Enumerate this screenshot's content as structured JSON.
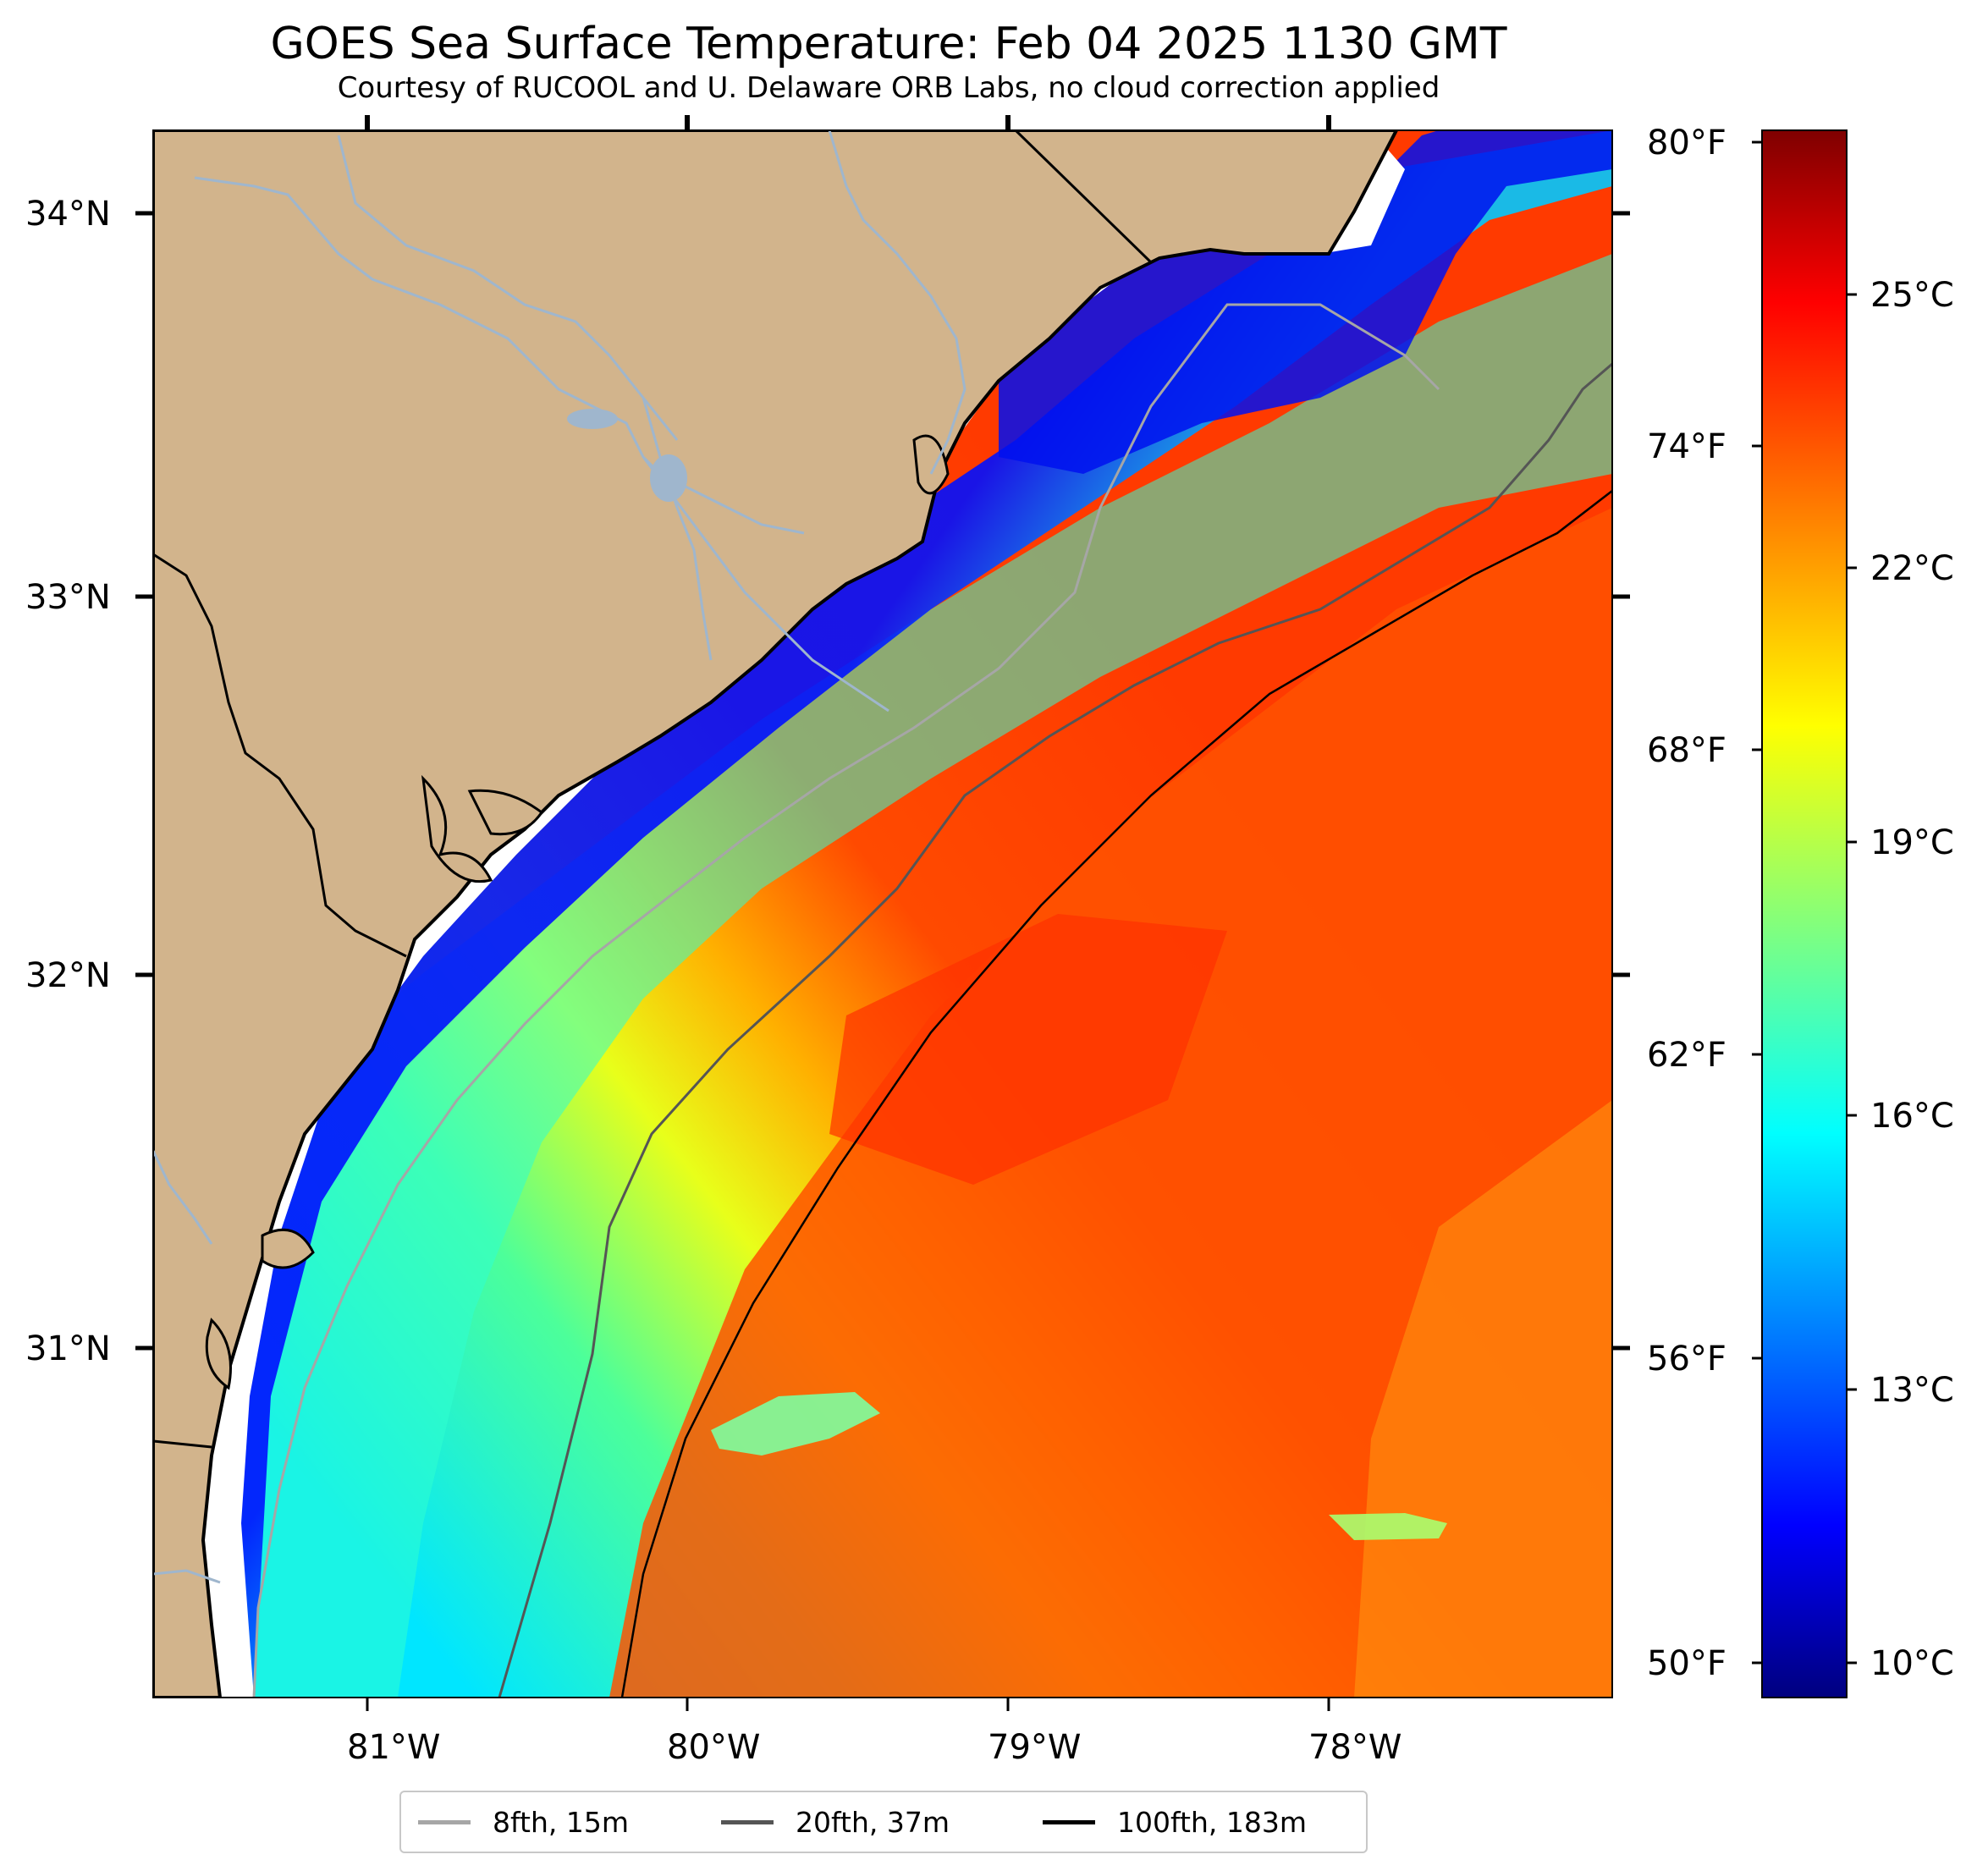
{
  "title": "GOES Sea Surface Temperature: Feb 04 2025 1130 GMT",
  "subtitle": "Courtesy of RUCOOL and U. Delaware ORB Labs, no cloud correction applied",
  "map": {
    "lon_labels": [
      "81°W",
      "80°W",
      "79°W",
      "78°W"
    ],
    "lat_labels": [
      "34°N",
      "33°N",
      "32°N",
      "31°N"
    ]
  },
  "colorbar": {
    "fahrenheit_labels": [
      "80°F",
      "74°F",
      "68°F",
      "62°F",
      "56°F",
      "50°F"
    ],
    "celsius_labels": [
      "25°C",
      "22°C",
      "19°C",
      "16°C",
      "13°C",
      "10°C"
    ],
    "colormap": "jet",
    "range_celsius": [
      9.5,
      27.0
    ]
  },
  "legend": {
    "items": [
      {
        "label": "8fth, 15m",
        "color": "#a6a6a6"
      },
      {
        "label": "20fth, 37m",
        "color": "#555555"
      },
      {
        "label": "100fth, 183m",
        "color": "#000000"
      }
    ]
  },
  "colors": {
    "land": "#d2b48c",
    "river": "#9fb6cd",
    "no_data": "#ffffff"
  }
}
